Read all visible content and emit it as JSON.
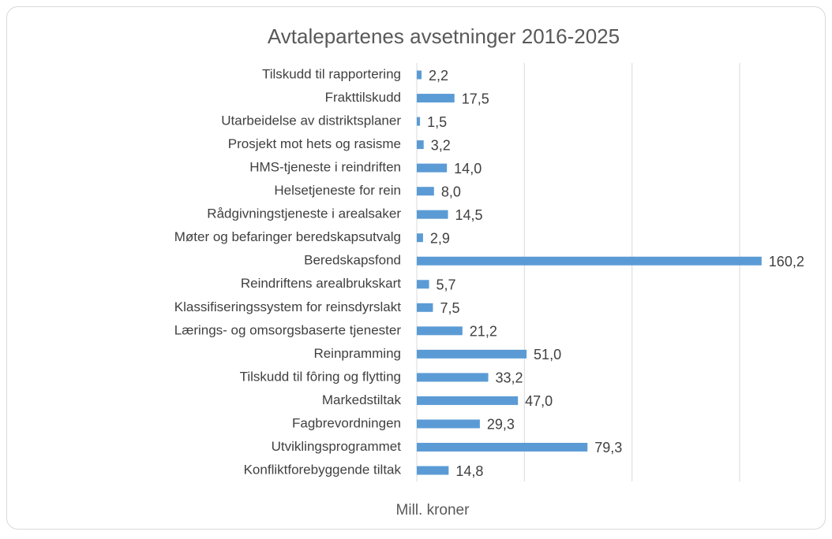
{
  "chart_data": {
    "type": "hbar",
    "title": "Avtalepartenes avsetninger 2016-2025",
    "x_label": "Mill. kroner",
    "categories": [
      "Tilskudd til rapportering",
      "Frakttilskudd",
      "Utarbeidelse av distriktsplaner",
      "Prosjekt mot hets og rasisme",
      "HMS-tjeneste i reindriften",
      "Helsetjeneste for rein",
      "Rådgivningstjeneste i arealsaker",
      "Møter og befaringer beredskapsutvalg",
      "Beredskapsfond",
      "Reindriftens arealbrukskart",
      "Klassifiseringssystem for reinsdyrslakt",
      "Lærings- og omsorgsbaserte tjenester",
      "Reinpramming",
      "Tilskudd til fôring og flytting",
      "Markedstiltak",
      "Fagbrevordningen",
      "Utviklingsprogrammet",
      "Konfliktforebyggende tiltak"
    ],
    "values": [
      2.2,
      17.5,
      1.5,
      3.2,
      14.0,
      8.0,
      14.5,
      2.9,
      160.2,
      5.7,
      7.5,
      21.2,
      51.0,
      33.2,
      47.0,
      29.3,
      79.3,
      14.8
    ],
    "value_labels": [
      "2,2",
      "17,5",
      "1,5",
      "3,2",
      "14,0",
      "8,0",
      "14,5",
      "2,9",
      "160,2",
      "5,7",
      "7,5",
      "21,2",
      "51,0",
      "33,2",
      "47,0",
      "29,3",
      "79,3",
      "14,8"
    ],
    "color": "#5b9bd5",
    "xlim": [
      0,
      150
    ],
    "xticks": [
      0,
      50,
      100,
      150
    ],
    "grid": true
  }
}
